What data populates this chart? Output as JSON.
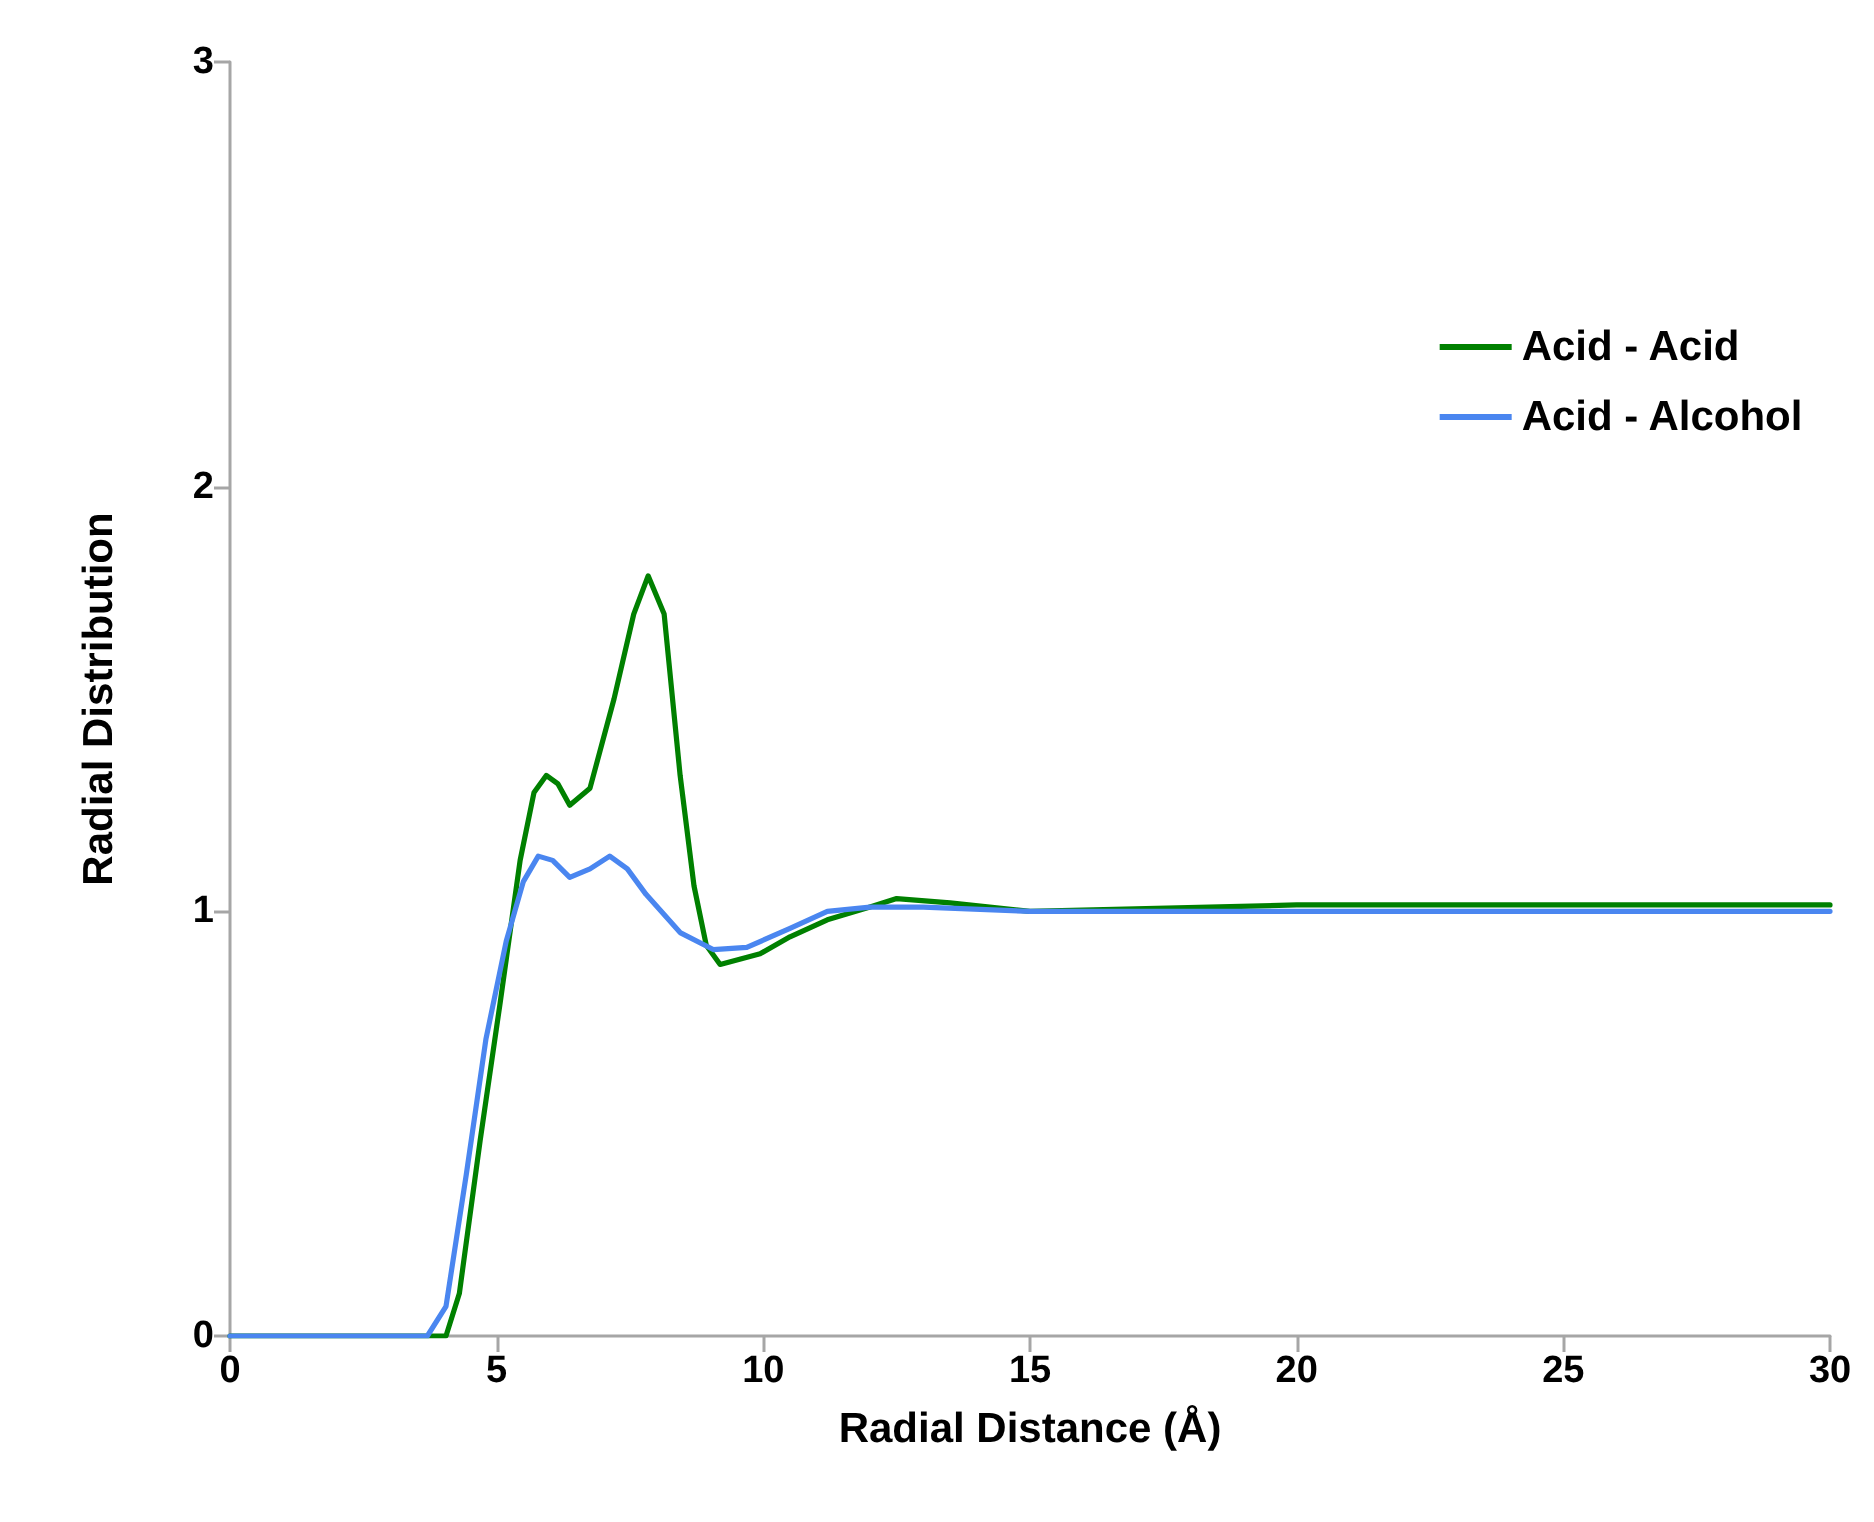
{
  "chart_data": {
    "type": "line",
    "xlabel": "Radial Distance (Å)",
    "ylabel": "Radial Distribution",
    "xlim": [
      0,
      30
    ],
    "xticks": [
      0,
      5,
      10,
      15,
      20,
      25,
      30
    ],
    "ylim": [
      0,
      3
    ],
    "yticks": [
      0,
      1,
      2,
      3
    ],
    "grid": false,
    "legend": "top right",
    "marker": "none",
    "line_style": "solid",
    "series": [
      {
        "name": "Acid - Acid",
        "color": "#008000",
        "x": [
          0,
          3.5,
          4.05,
          4.3,
          4.69,
          5.06,
          5.44,
          5.7,
          5.93,
          6.15,
          6.37,
          6.75,
          7.2,
          7.57,
          7.84,
          8.14,
          8.44,
          8.7,
          8.93,
          9.19,
          9.94,
          10.5,
          11.2,
          12,
          12.5,
          13.5,
          15,
          20,
          25,
          30
        ],
        "values": [
          0,
          0,
          0,
          0.1,
          0.46,
          0.78,
          1.12,
          1.28,
          1.32,
          1.3,
          1.25,
          1.29,
          1.5,
          1.7,
          1.79,
          1.7,
          1.32,
          1.06,
          0.92,
          0.875,
          0.9,
          0.94,
          0.98,
          1.01,
          1.03,
          1.02,
          1.0,
          1.015,
          1.015,
          1.015
        ]
      },
      {
        "name": "Acid - Alcohol",
        "color": "#4a86f0",
        "x": [
          0,
          3.7,
          4.05,
          4.43,
          4.8,
          5.18,
          5.5,
          5.78,
          6.05,
          6.37,
          6.75,
          7.12,
          7.45,
          7.8,
          8.44,
          9.06,
          9.69,
          10.5,
          11.2,
          12,
          13,
          15,
          20,
          25,
          30
        ],
        "values": [
          0,
          0,
          0.07,
          0.38,
          0.7,
          0.93,
          1.07,
          1.13,
          1.12,
          1.08,
          1.1,
          1.13,
          1.1,
          1.04,
          0.95,
          0.91,
          0.915,
          0.96,
          1.0,
          1.01,
          1.01,
          1.0,
          1.0,
          1.0,
          1.0
        ]
      }
    ]
  }
}
